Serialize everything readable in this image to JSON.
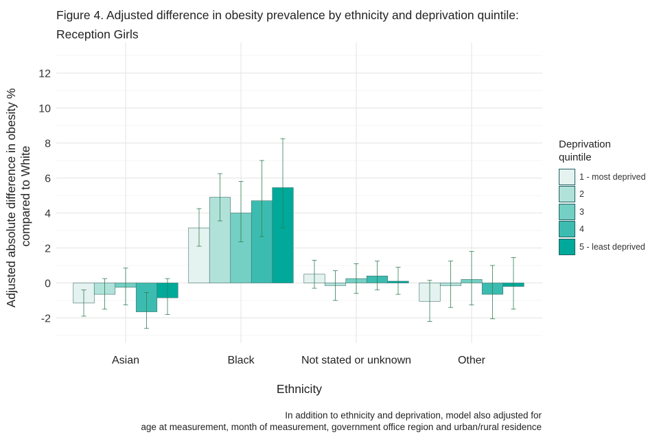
{
  "title_lines": [
    "Figure 4. Adjusted difference in obesity prevalence by ethnicity and deprivation quintile:",
    "Reception Girls"
  ],
  "caption_lines": [
    "In addition to ethnicity and deprivation, model also adjusted for",
    "age at measurement, month of measurement, government office region and urban/rural residence"
  ],
  "chart_data": {
    "type": "bar",
    "title": "Figure 4. Adjusted difference in obesity prevalence by ethnicity and deprivation quintile: Reception Girls",
    "xlabel": "Ethnicity",
    "ylabel_lines": [
      "Adjusted absolute difference in obesity %",
      "compared to White"
    ],
    "ylim": [
      -3,
      13.5
    ],
    "yticks": [
      -2,
      0,
      2,
      4,
      6,
      8,
      10,
      12
    ],
    "grid": true,
    "legend_title_lines": [
      "Deprivation",
      "quintile"
    ],
    "legend_position": "right",
    "categories": [
      "Asian",
      "Black",
      "Not stated or unknown",
      "Other"
    ],
    "series": [
      {
        "name": "1 - most deprived",
        "color": "#e4f2f0",
        "values": [
          -1.15,
          3.15,
          0.5,
          -1.05
        ],
        "ci_low": [
          -1.9,
          2.1,
          -0.3,
          -2.2
        ],
        "ci_high": [
          -0.4,
          4.25,
          1.3,
          0.15
        ]
      },
      {
        "name": "2",
        "color": "#b0e2da",
        "values": [
          -0.65,
          4.9,
          -0.15,
          -0.15
        ],
        "ci_low": [
          -1.5,
          3.55,
          -1.0,
          -1.4
        ],
        "ci_high": [
          0.25,
          6.25,
          0.7,
          1.25
        ]
      },
      {
        "name": "3",
        "color": "#74cfc4",
        "values": [
          -0.25,
          4.0,
          0.25,
          0.2
        ],
        "ci_low": [
          -1.25,
          2.35,
          -0.6,
          -1.25
        ],
        "ci_high": [
          0.85,
          5.8,
          1.1,
          1.8
        ]
      },
      {
        "name": "4",
        "color": "#3cbcb0",
        "values": [
          -1.65,
          4.7,
          0.4,
          -0.65
        ],
        "ci_low": [
          -2.6,
          2.65,
          -0.4,
          -2.05
        ],
        "ci_high": [
          -0.55,
          7.0,
          1.25,
          1.0
        ]
      },
      {
        "name": "5 - least deprived",
        "color": "#00a99a",
        "values": [
          -0.85,
          5.45,
          0.1,
          -0.2
        ],
        "ci_low": [
          -1.8,
          3.15,
          -0.65,
          -1.5
        ],
        "ci_high": [
          0.25,
          8.25,
          0.9,
          1.45
        ]
      }
    ]
  }
}
